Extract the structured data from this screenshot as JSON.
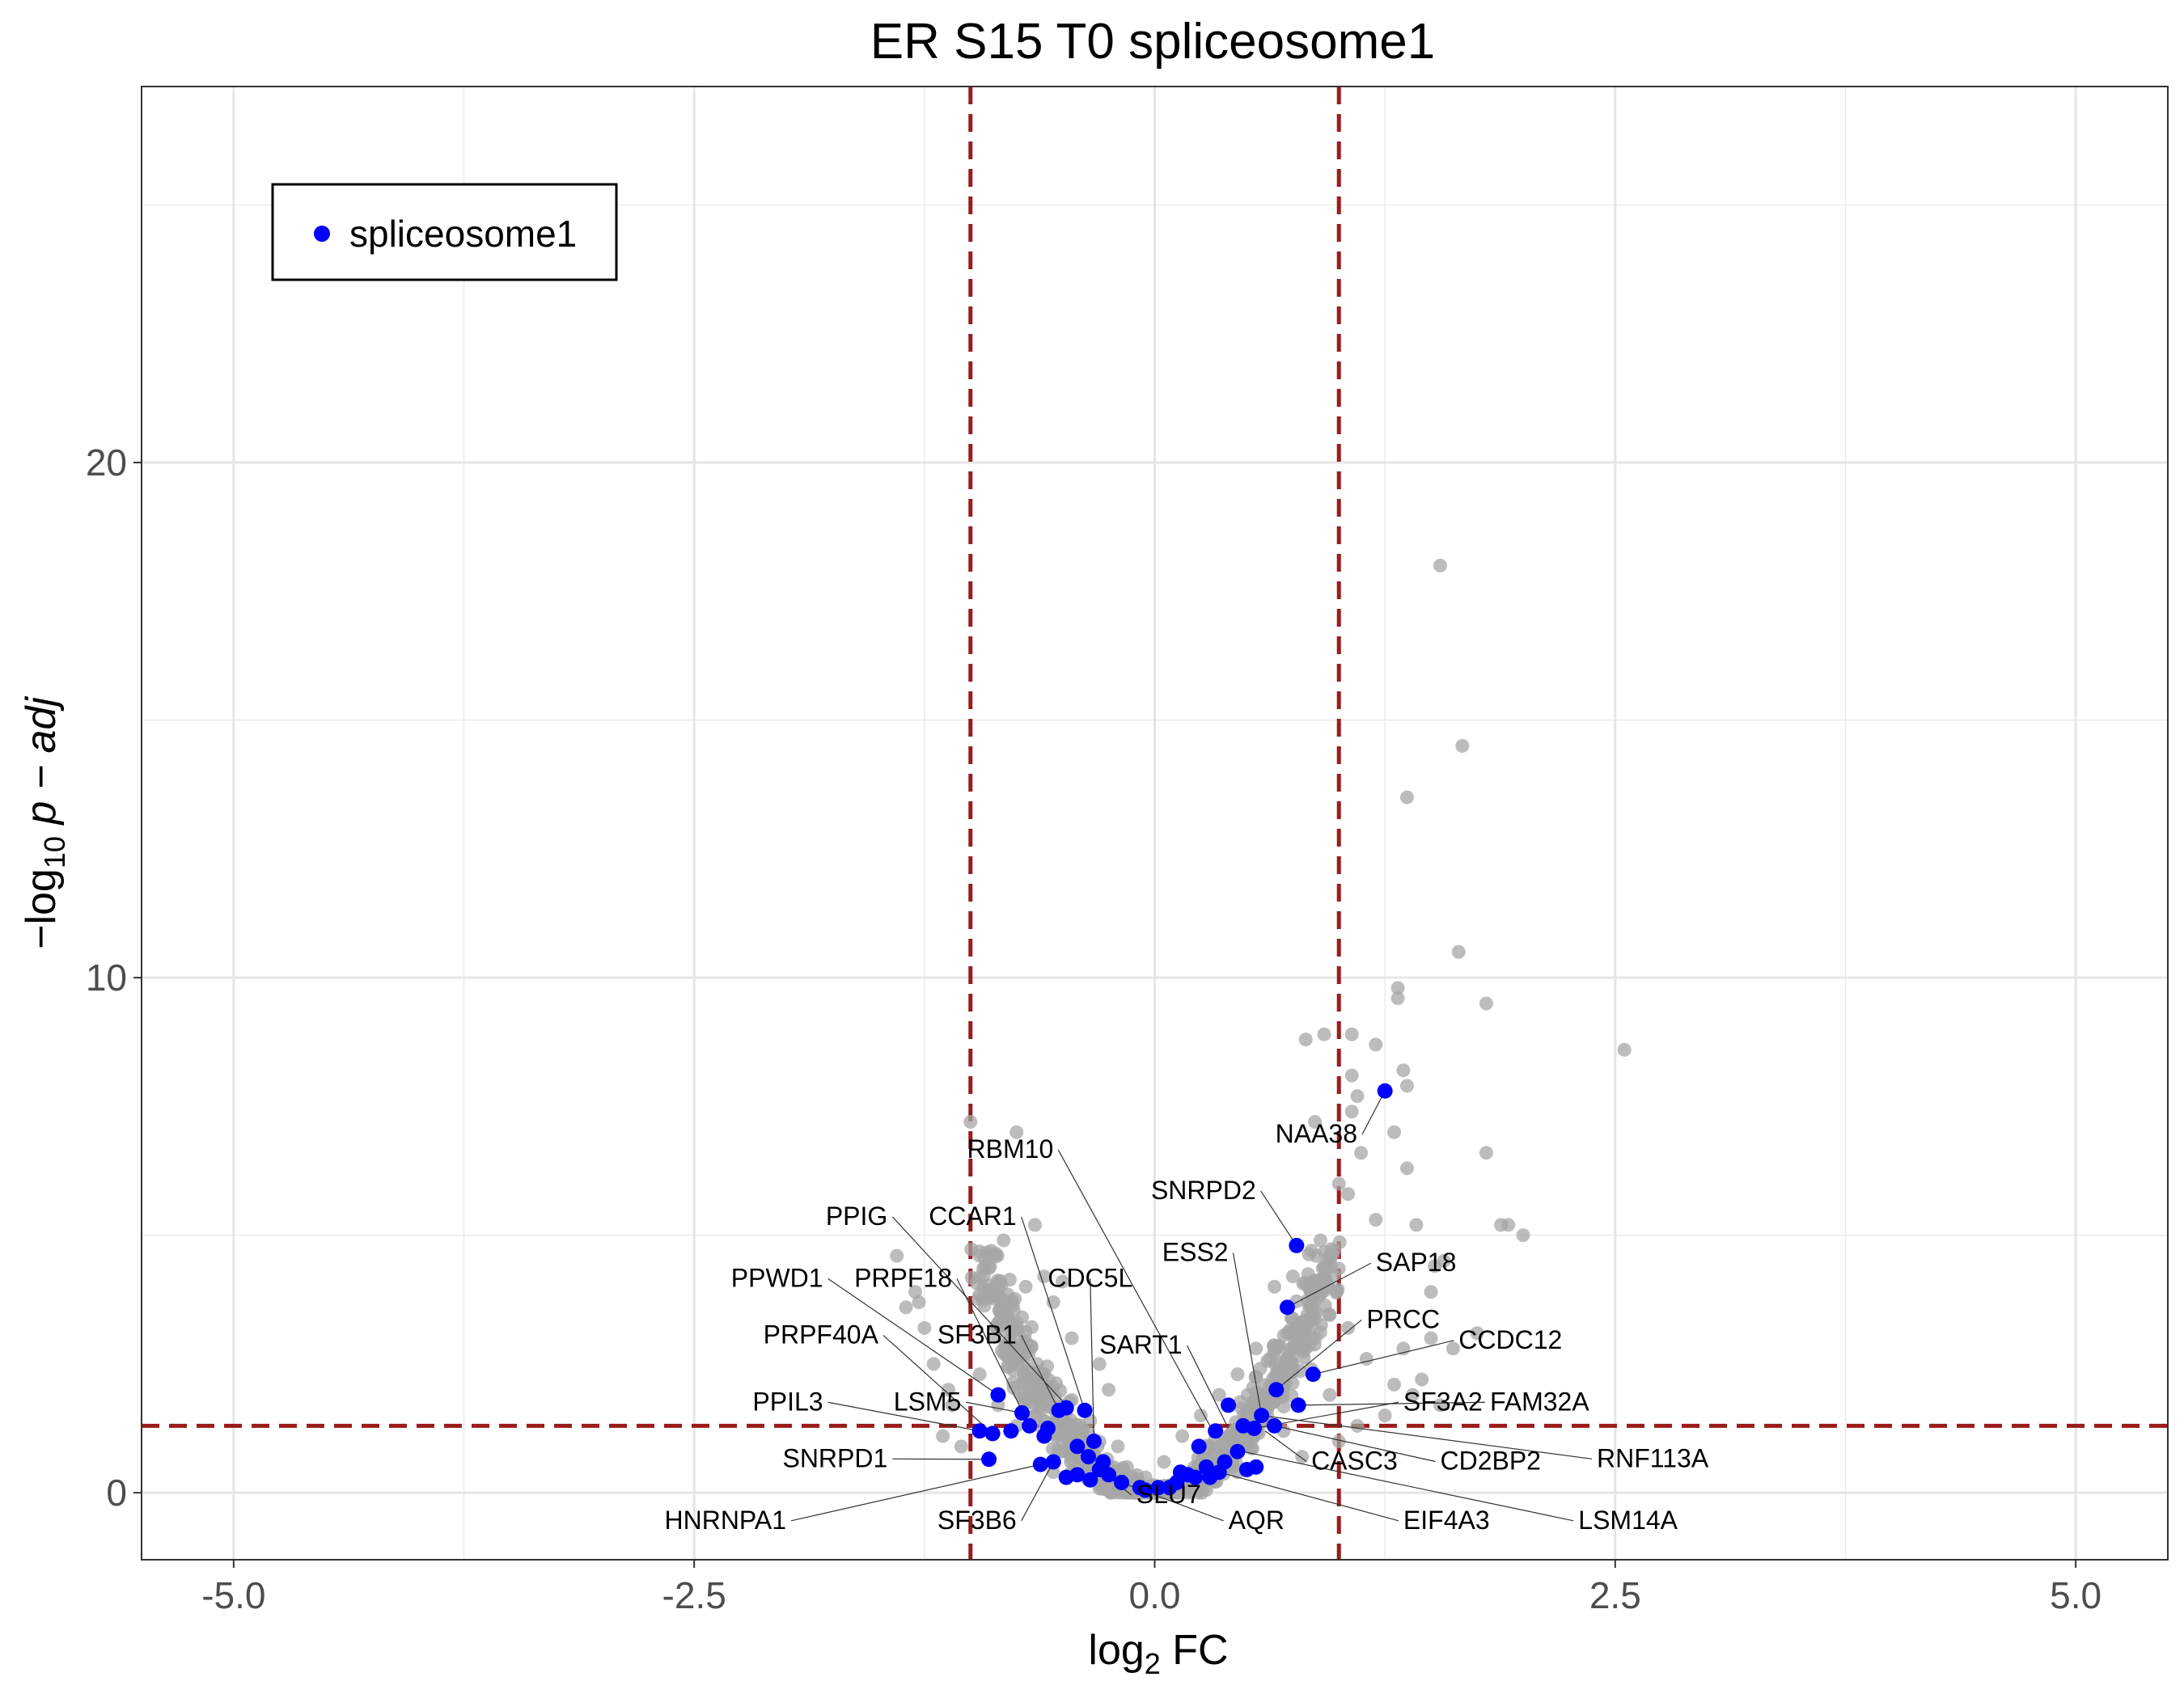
{
  "chart_data": {
    "type": "scatter",
    "title": "ER S15 T0 spliceosome1",
    "xlabel": {
      "base": "log",
      "sub": "2",
      "rest": " FC"
    },
    "ylabel": {
      "minus": "−",
      "base": "log",
      "sub": "10",
      "p": "p",
      "rest": " − adj"
    },
    "xlim": [
      -5.5,
      5.5
    ],
    "ylim": [
      -1.3,
      27.3
    ],
    "x_ticks": [
      {
        "value": -5.0,
        "label": "-5.0"
      },
      {
        "value": -2.5,
        "label": "-2.5"
      },
      {
        "value": 0.0,
        "label": "0.0"
      },
      {
        "value": 2.5,
        "label": "2.5"
      },
      {
        "value": 5.0,
        "label": "5.0"
      }
    ],
    "y_ticks": [
      {
        "value": 0,
        "label": "0"
      },
      {
        "value": 10,
        "label": "10"
      },
      {
        "value": 20,
        "label": "20"
      }
    ],
    "grid": true,
    "thresholds": {
      "log2fc": [
        -1,
        1
      ],
      "neglog10_padj": 1.3,
      "color": "#9B1B1B"
    },
    "colors": {
      "background_points": "#A6A6A6",
      "highlight": "#0000FF"
    },
    "legend": {
      "position": "top-left",
      "entries": [
        {
          "label": "spliceosome1",
          "color": "#0000FF"
        }
      ]
    },
    "background_points": [
      [
        -1.0,
        7.2
      ],
      [
        -0.75,
        7.0
      ],
      [
        -1.3,
        3.9
      ],
      [
        -1.28,
        3.7
      ],
      [
        -1.35,
        3.6
      ],
      [
        -1.25,
        3.2
      ],
      [
        -1.4,
        4.6
      ],
      [
        -1.2,
        2.5
      ],
      [
        -0.95,
        4.6
      ],
      [
        -0.92,
        4.4
      ],
      [
        -0.82,
        4.9
      ],
      [
        -0.65,
        5.2
      ],
      [
        -0.6,
        4.2
      ],
      [
        -0.9,
        3.9
      ],
      [
        -0.7,
        4.0
      ],
      [
        -0.85,
        3.3
      ],
      [
        -0.55,
        3.7
      ],
      [
        -1.12,
        2.0
      ],
      [
        -1.15,
        1.1
      ],
      [
        -1.05,
        0.9
      ],
      [
        -0.5,
        4.1
      ],
      [
        -0.45,
        3.0
      ],
      [
        -0.3,
        2.5
      ],
      [
        -0.25,
        2.0
      ],
      [
        1.55,
        18.0
      ],
      [
        1.67,
        14.5
      ],
      [
        1.37,
        13.5
      ],
      [
        1.65,
        10.5
      ],
      [
        1.8,
        9.5
      ],
      [
        2.55,
        8.6
      ],
      [
        1.32,
        9.8
      ],
      [
        1.32,
        9.6
      ],
      [
        0.82,
        8.8
      ],
      [
        0.92,
        8.9
      ],
      [
        1.07,
        8.9
      ],
      [
        1.2,
        8.7
      ],
      [
        1.35,
        8.2
      ],
      [
        1.37,
        7.9
      ],
      [
        1.07,
        8.1
      ],
      [
        1.1,
        7.7
      ],
      [
        0.87,
        7.2
      ],
      [
        1.07,
        7.4
      ],
      [
        1.12,
        6.6
      ],
      [
        1.3,
        7.0
      ],
      [
        1.8,
        6.6
      ],
      [
        1.37,
        6.3
      ],
      [
        1.0,
        6.0
      ],
      [
        1.05,
        5.8
      ],
      [
        1.2,
        5.3
      ],
      [
        1.42,
        5.2
      ],
      [
        1.88,
        5.2
      ],
      [
        1.92,
        5.2
      ],
      [
        2.0,
        5.0
      ],
      [
        1.57,
        4.5
      ],
      [
        1.52,
        4.4
      ],
      [
        1.5,
        3.9
      ],
      [
        1.5,
        3.0
      ],
      [
        1.62,
        2.8
      ],
      [
        1.75,
        3.1
      ],
      [
        1.35,
        2.8
      ],
      [
        1.45,
        2.2
      ],
      [
        1.4,
        1.9
      ],
      [
        1.55,
        1.7
      ],
      [
        1.25,
        1.5
      ],
      [
        0.9,
        4.9
      ],
      [
        0.85,
        4.7
      ],
      [
        0.95,
        4.6
      ],
      [
        0.75,
        4.2
      ],
      [
        0.65,
        4.0
      ],
      [
        0.72,
        3.1
      ],
      [
        0.55,
        2.8
      ],
      [
        0.45,
        2.3
      ],
      [
        0.35,
        1.9
      ],
      [
        0.25,
        1.5
      ],
      [
        0.15,
        1.1
      ],
      [
        0.05,
        0.6
      ],
      [
        -0.05,
        0.3
      ],
      [
        -0.15,
        0.5
      ],
      [
        0.3,
        0.9
      ],
      [
        0.6,
        1.6
      ],
      [
        0.85,
        2.4
      ],
      [
        1.05,
        3.2
      ],
      [
        1.15,
        2.6
      ],
      [
        1.3,
        2.1
      ],
      [
        0.95,
        1.9
      ],
      [
        1.1,
        1.3
      ],
      [
        1.0,
        1.0
      ],
      [
        0.8,
        0.7
      ],
      [
        -0.35,
        1.4
      ],
      [
        -0.45,
        1.8
      ],
      [
        -0.6,
        2.3
      ],
      [
        -0.7,
        2.9
      ],
      [
        -0.8,
        3.4
      ],
      [
        -0.65,
        1.5
      ],
      [
        -0.5,
        1.0
      ],
      [
        -0.4,
        0.7
      ],
      [
        -0.85,
        1.7
      ],
      [
        -0.95,
        2.3
      ],
      [
        -0.75,
        1.3
      ],
      [
        -0.2,
        0.9
      ],
      [
        -1.1,
        1.7
      ],
      [
        -0.55,
        0.4
      ],
      [
        0.45,
        0.4
      ],
      [
        0.7,
        1.2
      ]
    ],
    "highlight_points": [
      [
        1.25,
        7.8
      ],
      [
        0.77,
        4.8
      ],
      [
        0.72,
        3.6
      ],
      [
        0.86,
        2.3
      ],
      [
        0.78,
        1.7
      ],
      [
        0.66,
        2.0
      ],
      [
        0.58,
        1.5
      ],
      [
        0.65,
        1.3
      ],
      [
        0.54,
        1.25
      ],
      [
        0.48,
        1.3
      ],
      [
        0.4,
        1.7
      ],
      [
        0.33,
        1.2
      ],
      [
        0.45,
        0.8
      ],
      [
        0.55,
        0.5
      ],
      [
        0.28,
        0.5
      ],
      [
        0.24,
        0.9
      ],
      [
        0.18,
        0.35
      ],
      [
        0.12,
        0.2
      ],
      [
        0.08,
        0.1
      ],
      [
        0.02,
        0.1
      ],
      [
        -0.08,
        0.1
      ],
      [
        -0.18,
        0.2
      ],
      [
        -0.25,
        0.35
      ],
      [
        -0.3,
        0.45
      ],
      [
        -0.36,
        0.7
      ],
      [
        -0.42,
        0.9
      ],
      [
        -0.33,
        1.0
      ],
      [
        -0.38,
        1.6
      ],
      [
        -0.48,
        1.65
      ],
      [
        -0.52,
        1.6
      ],
      [
        -0.6,
        1.1
      ],
      [
        -0.62,
        0.55
      ],
      [
        -0.68,
        1.3
      ],
      [
        -0.72,
        1.55
      ],
      [
        -0.78,
        1.2
      ],
      [
        -0.85,
        1.9
      ],
      [
        -0.88,
        1.15
      ],
      [
        -0.95,
        1.2
      ],
      [
        -0.9,
        0.65
      ],
      [
        -0.55,
        0.6
      ],
      [
        -0.48,
        0.3
      ],
      [
        -0.42,
        0.35
      ],
      [
        -0.58,
        1.25
      ],
      [
        0.35,
        0.4
      ],
      [
        0.3,
        0.3
      ],
      [
        0.38,
        0.6
      ],
      [
        0.5,
        0.45
      ],
      [
        0.22,
        0.3
      ],
      [
        0.14,
        0.4
      ],
      [
        -0.05,
        0.05
      ],
      [
        -0.28,
        0.6
      ],
      [
        -0.35,
        0.25
      ]
    ],
    "annotations": [
      {
        "label": "NAA38",
        "x": 1.25,
        "y": 7.8,
        "lx": 1.1,
        "ly": 6.8
      },
      {
        "label": "RBM10",
        "x": 0.3,
        "y": 1.3,
        "lx": -0.55,
        "ly": 6.5
      },
      {
        "label": "SNRPD2",
        "x": 0.77,
        "y": 4.8,
        "lx": 0.55,
        "ly": 5.7
      },
      {
        "label": "PPIG",
        "x": -0.48,
        "y": 1.7,
        "lx": -1.45,
        "ly": 5.2
      },
      {
        "label": "CCAR1",
        "x": -0.38,
        "y": 1.6,
        "lx": -0.75,
        "ly": 5.2
      },
      {
        "label": "ESS2",
        "x": 0.58,
        "y": 1.5,
        "lx": 0.4,
        "ly": 4.5
      },
      {
        "label": "SAP18",
        "x": 0.72,
        "y": 3.6,
        "lx": 1.2,
        "ly": 4.3
      },
      {
        "label": "PPWD1",
        "x": -0.85,
        "y": 1.9,
        "lx": -1.8,
        "ly": 4.0
      },
      {
        "label": "PRPF18",
        "x": -0.68,
        "y": 1.3,
        "lx": -1.1,
        "ly": 4.0
      },
      {
        "label": "CDC5L",
        "x": -0.33,
        "y": 1.0,
        "lx": -0.35,
        "ly": 4.0
      },
      {
        "label": "PRCC",
        "x": 0.66,
        "y": 2.0,
        "lx": 1.15,
        "ly": 3.2
      },
      {
        "label": "PRPF40A",
        "x": -0.88,
        "y": 1.15,
        "lx": -1.5,
        "ly": 2.9
      },
      {
        "label": "SF3B1",
        "x": -0.52,
        "y": 1.6,
        "lx": -0.75,
        "ly": 2.9
      },
      {
        "label": "SART1",
        "x": 0.4,
        "y": 1.25,
        "lx": 0.15,
        "ly": 2.7
      },
      {
        "label": "CCDC12",
        "x": 0.86,
        "y": 2.3,
        "lx": 1.65,
        "ly": 2.8
      },
      {
        "label": "FAM32A",
        "x": 0.78,
        "y": 1.7,
        "lx": 1.82,
        "ly": 1.6
      },
      {
        "label": "PPIL3",
        "x": -0.95,
        "y": 1.2,
        "lx": -1.8,
        "ly": 1.6
      },
      {
        "label": "LSM5",
        "x": -0.72,
        "y": 1.55,
        "lx": -1.05,
        "ly": 1.6
      },
      {
        "label": "SF3A2",
        "x": 0.54,
        "y": 1.25,
        "lx": 1.35,
        "ly": 1.6
      },
      {
        "label": "SNRPD1",
        "x": -0.9,
        "y": 0.65,
        "lx": -1.45,
        "ly": 0.5
      },
      {
        "label": "CASC3",
        "x": 0.6,
        "y": 1.2,
        "lx": 0.85,
        "ly": 0.45
      },
      {
        "label": "CD2BP2",
        "x": 0.65,
        "y": 1.3,
        "lx": 1.55,
        "ly": 0.45
      },
      {
        "label": "RNF113A",
        "x": 0.58,
        "y": 1.5,
        "lx": 2.4,
        "ly": 0.5
      },
      {
        "label": "SLU7",
        "x": -0.3,
        "y": 0.45,
        "lx": -0.1,
        "ly": -0.2
      },
      {
        "label": "HNRNPA1",
        "x": -0.62,
        "y": 0.55,
        "lx": -2.0,
        "ly": -0.7
      },
      {
        "label": "SF3B6",
        "x": -0.55,
        "y": 0.6,
        "lx": -0.75,
        "ly": -0.7
      },
      {
        "label": "AQR",
        "x": -0.18,
        "y": 0.2,
        "lx": 0.4,
        "ly": -0.7
      },
      {
        "label": "EIF4A3",
        "x": 0.35,
        "y": 0.4,
        "lx": 1.35,
        "ly": -0.7
      },
      {
        "label": "LSM14A",
        "x": 0.48,
        "y": 0.8,
        "lx": 2.3,
        "ly": -0.7
      }
    ]
  }
}
